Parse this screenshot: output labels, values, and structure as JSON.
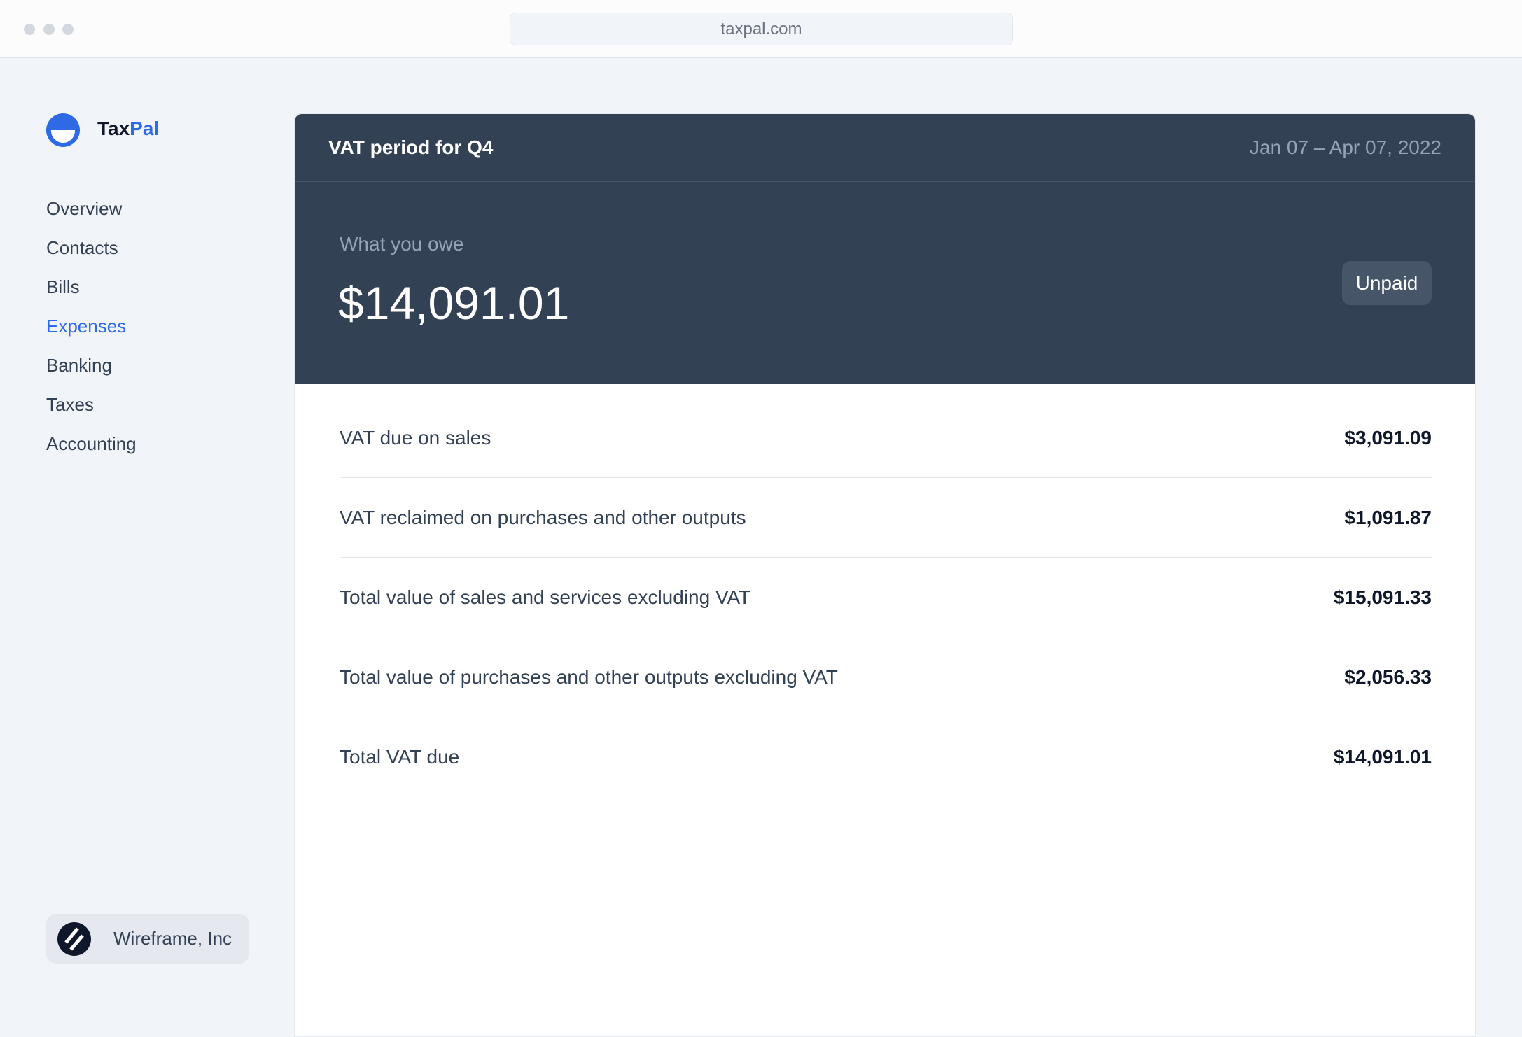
{
  "browser": {
    "url": "taxpal.com"
  },
  "brand": {
    "name_part1": "Tax",
    "name_part2": "Pal",
    "accent": "#2f6ae6"
  },
  "sidebar": {
    "items": [
      {
        "label": "Overview",
        "active": false
      },
      {
        "label": "Contacts",
        "active": false
      },
      {
        "label": "Bills",
        "active": false
      },
      {
        "label": "Expenses",
        "active": true
      },
      {
        "label": "Banking",
        "active": false
      },
      {
        "label": "Taxes",
        "active": false
      },
      {
        "label": "Accounting",
        "active": false
      }
    ],
    "org": {
      "name": "Wireframe, Inc"
    }
  },
  "card": {
    "title": "VAT period for Q4",
    "date_range": "Jan 07 – Apr 07, 2022",
    "owe_label": "What you owe",
    "owe_amount": "$14,091.01",
    "status": "Unpaid",
    "rows": [
      {
        "label": "VAT due on sales",
        "value": "$3,091.09"
      },
      {
        "label": "VAT reclaimed on purchases and other outputs",
        "value": "$1,091.87"
      },
      {
        "label": "Total value of sales and services excluding VAT",
        "value": "$15,091.33"
      },
      {
        "label": "Total value of purchases and other outputs excluding VAT",
        "value": "$2,056.33"
      },
      {
        "label": "Total VAT due",
        "value": "$14,091.01"
      }
    ]
  }
}
